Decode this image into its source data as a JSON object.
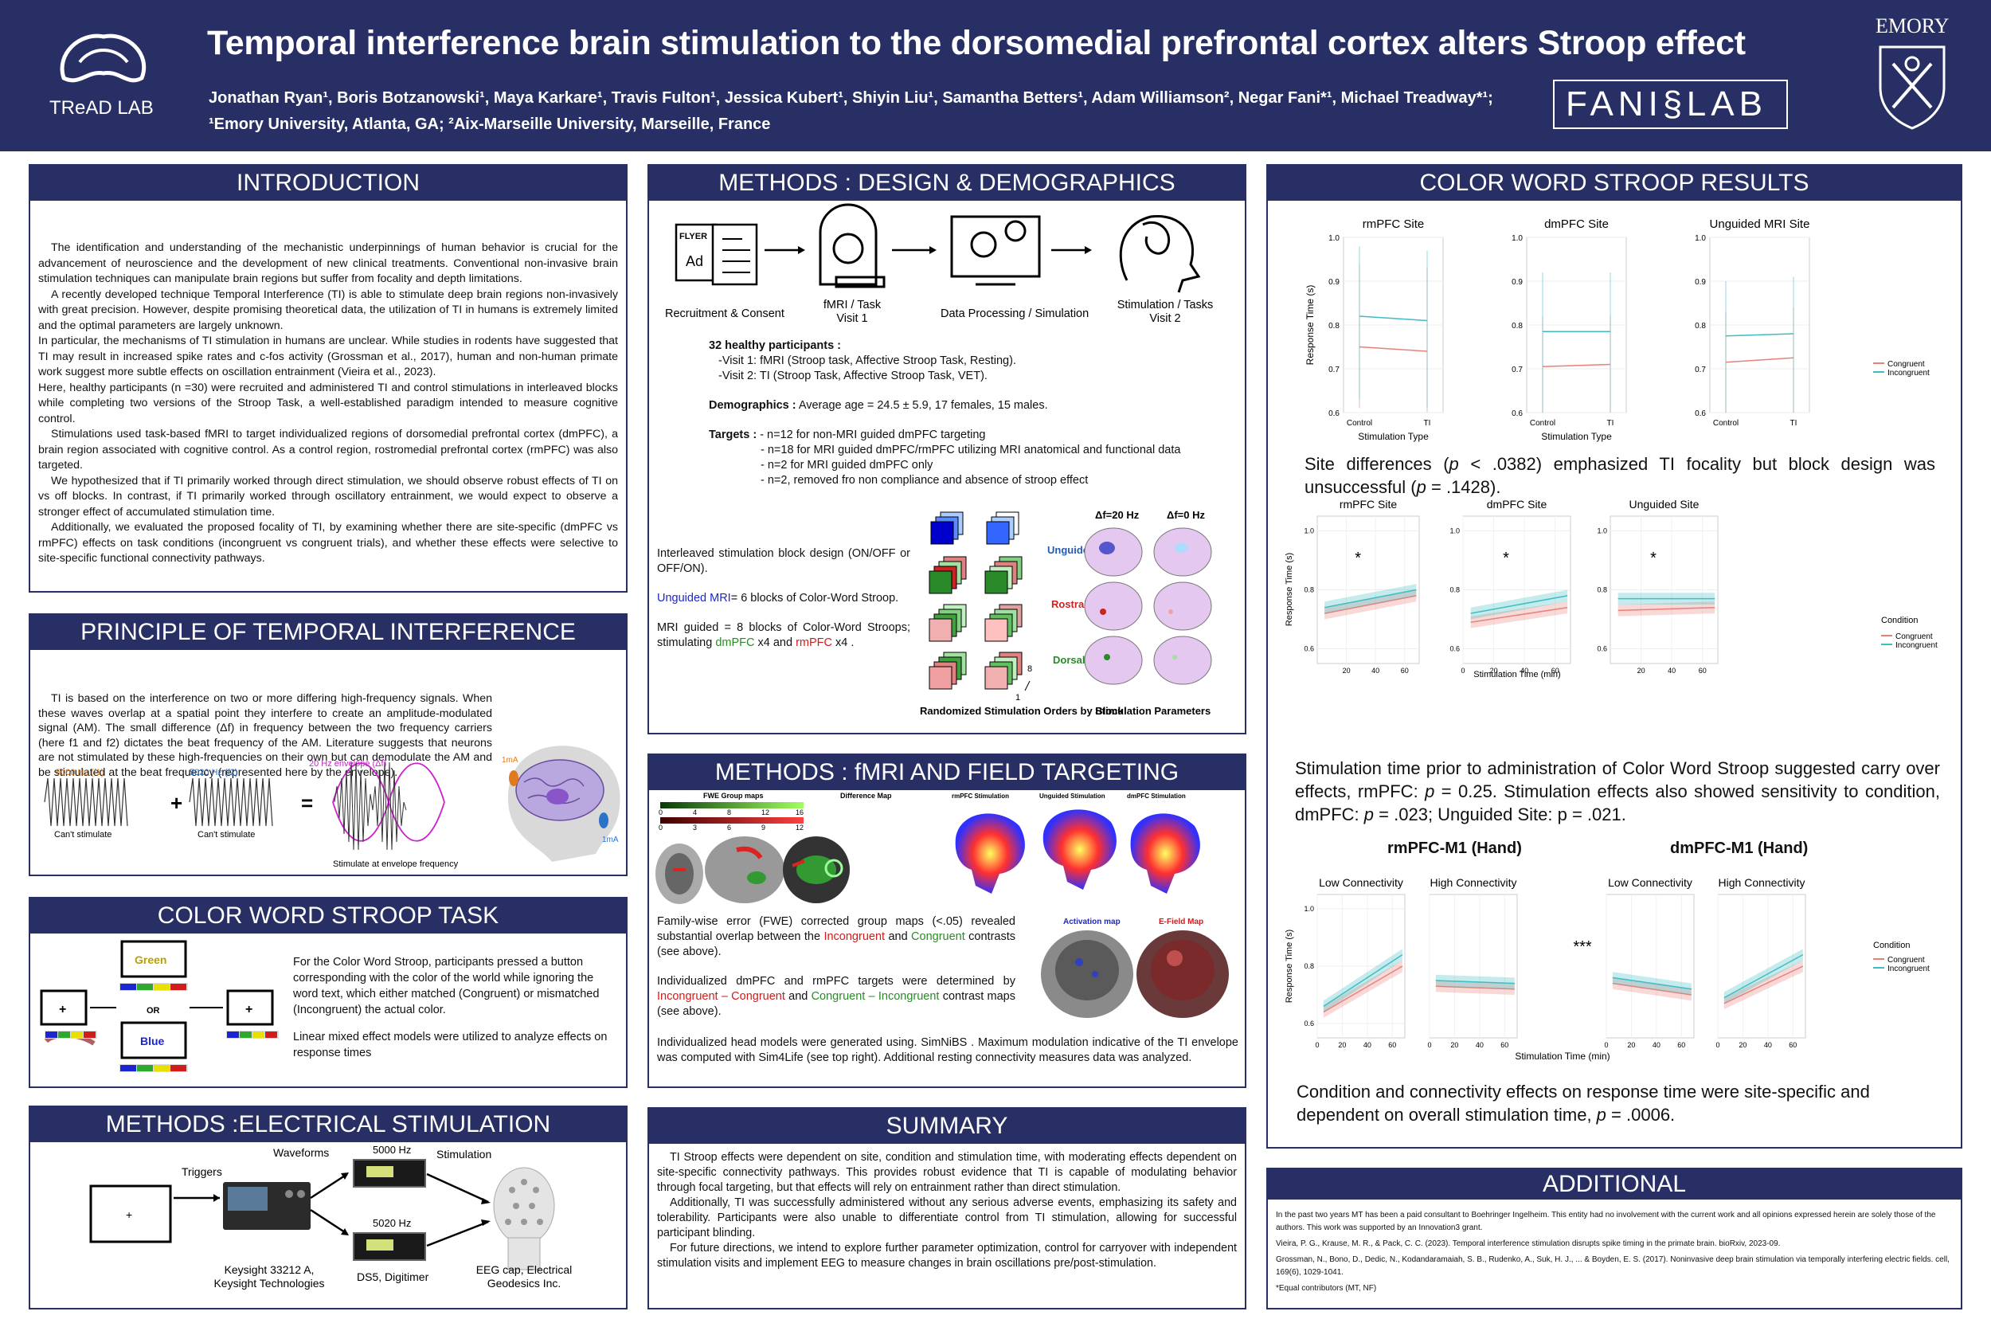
{
  "header": {
    "title": "Temporal interference brain stimulation to the dorsomedial prefrontal cortex alters Stroop effect",
    "authors": "Jonathan Ryan¹, Boris Botzanowski¹, Maya Karkare¹, Travis Fulton¹, Jessica Kubert¹, Shiyin Liu¹, Samantha Betters¹, Adam Williamson², Negar Fani*¹, Michael Treadway*¹;",
    "affiliations": "¹Emory University, Atlanta, GA; ²Aix-Marseille University, Marseille, France",
    "lab_name": "TReAD LAB",
    "fani_lab": "FANI",
    "fani_lab_2": "LAB",
    "university": "EMORY",
    "brand_color": "#272f64"
  },
  "intro": {
    "title": "INTRODUCTION",
    "p1": "The identification and understanding of the mechanistic underpinnings of human behavior is crucial for the advancement of neuroscience and the development of new clinical treatments. Conventional non-invasive brain stimulation techniques can manipulate brain regions but suffer from focality and depth limitations.",
    "p2": "A recently developed technique Temporal Interference (TI) is able to stimulate deep brain regions non-invasively with great precision.  However, despite promising theoretical data, the utilization of TI in humans is extremely limited and the optimal parameters are largely unknown.",
    "p3": "In particular, the mechanisms of TI stimulation in humans are unclear. While studies in rodents have suggested that TI may result in increased spike rates and c-fos activity (Grossman et al., 2017), human and non-human primate work suggest more subtle effects on oscillation entrainment (Vieira et al., 2023).",
    "p4": "Here, healthy participants (n =30) were recruited and administered TI and control stimulations in interleaved blocks while completing two versions of the Stroop Task, a well-established paradigm intended to measure cognitive control.",
    "p5": "Stimulations used task-based fMRI to target individualized regions of dorsomedial prefrontal cortex (dmPFC), a brain region associated with cognitive control. As a control region, rostromedial prefrontal cortex (rmPFC) was also targeted.",
    "p6": "We hypothesized that if TI primarily worked through direct stimulation, we should observe robust effects of TI on vs off blocks. In contrast, if TI primarily worked through oscillatory entrainment, we would expect to observe a stronger effect of accumulated stimulation time.",
    "p7": "Additionally, we evaluated the proposed focality of TI, by examining whether there are site-specific (dmPFC vs rmPFC) effects on task conditions (incongruent vs congruent trials), and whether these effects were selective to site-specific functional connectivity pathways."
  },
  "principle": {
    "title": "PRINCIPLE OF TEMPORAL INTERFERENCE",
    "text": "TI is based on the interference on two or more differing high-frequency signals. When these waves overlap at a spatial point they interfere to create an amplitude-modulated signal (AM). The small difference (Δf) in frequency between the two frequency carriers (here f1 and f2) dictates the beat frequency of the AM. Literature suggests that neurons are not stimulated by these high-frequencies on their own but can demodulate the AM and be stimulated at the beat frequency (represented here by the envelope).",
    "f1": "5000 Hz (f1)",
    "f2": "5020 Hz (f2)",
    "env": "20 Hz envelope (Δf)",
    "cant1": "Can't stimulate",
    "cant2": "Can't stimulate",
    "stim": "Stimulate at envelope frequency",
    "ma1": "1mA",
    "ma2": "1mA",
    "plus": "+",
    "eq": "="
  },
  "stroop": {
    "title": "COLOR WORD STROOP TASK",
    "text1": "For the Color Word Stroop, participants pressed a button corresponding with the color of the world while ignoring the word text, which either matched (Congruent) or mismatched (Incongruent) the actual color.",
    "text2": "Linear mixed effect models were utilized to analyze effects on response times",
    "w_green": "Green",
    "w_blue": "Blue",
    "or": "OR",
    "fix1": "+",
    "fix2": "+"
  },
  "elec": {
    "title": "METHODS :ELECTRICAL STIMULATION",
    "triggers": "Triggers",
    "waveforms": "Waveforms",
    "stimulation": "Stimulation",
    "hz1": "5000 Hz",
    "hz2": "5020 Hz",
    "keysight": "Keysight 33212 A,\nKeysight Technologies",
    "ds5": "DS5, Digitimer",
    "eeg": "EEG cap, Electrical\nGeodesics Inc.",
    "plus": "+"
  },
  "design": {
    "title": "METHODS : DESIGN & DEMOGRAPHICS",
    "step1": "Recruitment & Consent",
    "step2": "fMRI / Task\nVisit 1",
    "step3": "Data Processing / Simulation",
    "step4": "Stimulation / Tasks\nVisit 2",
    "flyer": "FLYER",
    "ad": "Ad",
    "participants": "32 healthy participants :",
    "visit1": "-Visit 1: fMRI (Stroop task, Affective Stroop Task, Resting).",
    "visit2": "-Visit 2: TI (Stroop Task, Affective Stroop Task, VET).",
    "demo_label": "Demographics :",
    "demo": " Average age = 24.5 ± 5.9, 17 females, 15 males.",
    "targets_label": "Targets :",
    "t1": "- n=12 for non-MRI guided dmPFC targeting",
    "t2": "- n=18 for MRI guided dmPFC/rmPFC utilizing MRI anatomical and functional data",
    "t3": "- n=2 for MRI guided dmPFC only",
    "t4": "- n=2, removed fro non compliance and absence of stroop effect",
    "interleaved": "Interleaved stimulation block design (ON/OFF or OFF/ON).",
    "unguided_a": "Unguided ",
    "unguided_b": "MRI",
    "unguided_c": "= 6 blocks of Color-Word Stroop.",
    "mri_a": "MRI guided = 8 blocks of Color-Word Stroops; stimulating ",
    "mri_b": "dmPFC",
    "mri_c": " x4 and ",
    "mri_d": "rmPFC",
    "mri_e": " x4 .",
    "rand": "Randomized Stimulation Orders by Block",
    "params": "Stimulation Parameters",
    "df20": "Δf=20 Hz",
    "df0": "Δf=0 Hz",
    "lab_unguided": "Unguided",
    "lab_rostral": "Rostral",
    "lab_dorsal": "Dorsal",
    "n1": "1",
    "n8": "8"
  },
  "fmri": {
    "title": "METHODS : fMRI AND FIELD TARGETING",
    "fwe": "FWE Group maps",
    "diffmap": "Difference Map",
    "s1": "rmPFC Stimulation",
    "s2": "Unguided Stimulation",
    "s3": "dmPFC Stimulation",
    "sc_g": [
      "0",
      "4",
      "8",
      "12",
      "16"
    ],
    "sc_r": [
      "0",
      "3",
      "6",
      "9",
      "12"
    ],
    "act": "Activation map",
    "efield": "E-Field Map",
    "p1_a": "Family-wise error (FWE) corrected group maps (<.05) revealed substantial overlap between the ",
    "p1_b": "Incongruent",
    "p1_c": " and ",
    "p1_d": "Congruent",
    "p1_e": " contrasts (see above).",
    "p2_a": "Individualized dmPFC and rmPFC targets were determined by ",
    "p2_b": "Incongruent – Congruent",
    "p2_c": " and ",
    "p2_d": "Congruent – Incongruent",
    "p2_e": " contrast maps (see above).",
    "p3": "Individualized head models were generated using. SimNiBS . Maximum modulation indicative of the TI envelope was computed with Sim4Life (see top right). Additional resting connectivity measures data was analyzed."
  },
  "summary": {
    "title": "SUMMARY",
    "p1": "TI Stroop effects were dependent on site, condition and stimulation time, with moderating effects dependent on site-specific connectivity pathways. This provides robust evidence that TI is capable of modulating behavior through focal targeting, but that effects will rely on entrainment rather than direct stimulation.",
    "p2": "Additionally, TI was successfully administered without any serious adverse events, emphasizing its safety and tolerability. Participants were also unable to differentiate control from TI stimulation, allowing for successful participant blinding.",
    "p3": "For future directions, we intend to explore further parameter optimization, control for carryover with independent stimulation visits and implement EEG to measure changes in brain oscillations pre/post-stimulation."
  },
  "results": {
    "title": "COLOR WORD STROOP RESULTS",
    "text1_a": "Site differences (",
    "text1_p1": "p",
    "text1_b": " < .0382) emphasized TI focality but block design was unsuccessful (",
    "text1_p2": "p",
    "text1_c": " = .1428).",
    "text2_a": "Stimulation time prior to administration of Color Word Stroop suggested carry over effects, rmPFC: ",
    "text2_p1": "p",
    "text2_b": " = 0.25. Stimulation effects also showed sensitivity to condition, dmPFC: ",
    "text2_p2": "p",
    "text2_c": " = .023; Unguided Site: p = .021.",
    "text3_a": "Condition and connectivity effects on response time were site-specific and dependent on overall stimulation time, ",
    "text3_p": "p",
    "text3_b": " = .0006.",
    "hand_r": "rmPFC-M1 (Hand)",
    "hand_d": "dmPFC-M1 (Hand)",
    "star3": "***"
  },
  "additional": {
    "title": "ADDITIONAL",
    "disclosure": "In the past two years MT has been a paid consultant to Boehringer Ingelheim. This entity had no involvement with the current work and all opinions expressed herein are solely those of the authors. This work was supported by an Innovation3 grant.",
    "ref1": "Vieira, P. G., Krause, M. R., & Pack, C. C. (2023). Temporal interference stimulation disrupts spike timing in the primate brain. bioRxiv, 2023-09.",
    "ref2": "Grossman, N., Bono, D., Dedic, N., Kodandaramaiah, S. B., Rudenko, A., Suk, H. J., ... & Boyden, E. S. (2017). Noninvasive deep brain stimulation via temporally interfering electric fields. cell, 169(6), 1029-1041.",
    "equal": "*Equal contributors (MT, NF)"
  },
  "colors": {
    "congruent": "#e8817a",
    "incongruent": "#3fbcc4"
  },
  "chart_data": [
    {
      "type": "line",
      "title": "rmPFC Site",
      "categories": [
        "Control",
        "TI"
      ],
      "xlabel": "Stimulation Type",
      "ylabel": "Response Time (s)",
      "ylim": [
        0.6,
        1.0
      ],
      "series": [
        {
          "name": "Congruent",
          "values": [
            0.75,
            0.74
          ],
          "lower": [
            0.61,
            0.6
          ],
          "upper": [
            0.94,
            0.93
          ]
        },
        {
          "name": "Incongruent",
          "values": [
            0.82,
            0.81
          ],
          "lower": [
            0.63,
            0.61
          ],
          "upper": [
            0.98,
            0.97
          ]
        }
      ],
      "legend_title": "Condition",
      "legend": "right"
    },
    {
      "type": "line",
      "title": "dmPFC Site",
      "categories": [
        "Control",
        "TI"
      ],
      "xlabel": "Stimulation Type",
      "ylim": [
        0.6,
        1.0
      ],
      "series": [
        {
          "name": "Congruent",
          "values": [
            0.705,
            0.71
          ],
          "lower": [
            0.6,
            0.6
          ],
          "upper": [
            0.82,
            0.82
          ]
        },
        {
          "name": "Incongruent",
          "values": [
            0.785,
            0.785
          ],
          "lower": [
            0.6,
            0.6
          ],
          "upper": [
            0.92,
            0.92
          ]
        }
      ]
    },
    {
      "type": "line",
      "title": "Unguided MRI Site",
      "categories": [
        "Control",
        "TI"
      ],
      "ylim": [
        0.6,
        1.0
      ],
      "series": [
        {
          "name": "Congruent",
          "values": [
            0.715,
            0.725
          ],
          "lower": [
            0.6,
            0.6
          ],
          "upper": [
            0.83,
            0.84
          ]
        },
        {
          "name": "Incongruent",
          "values": [
            0.775,
            0.78
          ],
          "lower": [
            0.6,
            0.6
          ],
          "upper": [
            0.9,
            0.91
          ]
        }
      ]
    },
    {
      "type": "scatter",
      "title": "rmPFC Site",
      "xlabel": "Stimulation Time (min)",
      "ylabel": "Response Time (s)",
      "xlim": [
        0,
        70
      ],
      "ylim": [
        0.55,
        1.05
      ],
      "xticks": [
        20,
        40,
        60
      ],
      "yticks": [
        0.6,
        0.8,
        1.0
      ],
      "annotation": "*",
      "series": [
        {
          "name": "Congruent",
          "fit": [
            [
              5,
              0.72
            ],
            [
              68,
              0.78
            ]
          ]
        },
        {
          "name": "Incongruent",
          "fit": [
            [
              5,
              0.74
            ],
            [
              68,
              0.8
            ]
          ]
        }
      ],
      "legend_title": "Condition"
    },
    {
      "type": "scatter",
      "title": "dmPFC Site",
      "xlabel": "Stimulation Time (min)",
      "xlim": [
        0,
        70
      ],
      "ylim": [
        0.55,
        1.05
      ],
      "xticks": [
        0,
        20,
        40,
        60
      ],
      "yticks": [
        0.6,
        0.8,
        1.0
      ],
      "annotation": "*",
      "series": [
        {
          "name": "Congruent",
          "fit": [
            [
              5,
              0.69
            ],
            [
              68,
              0.74
            ]
          ]
        },
        {
          "name": "Incongruent",
          "fit": [
            [
              5,
              0.72
            ],
            [
              68,
              0.78
            ]
          ]
        }
      ]
    },
    {
      "type": "scatter",
      "title": "Unguided Site",
      "xlim": [
        0,
        70
      ],
      "ylim": [
        0.55,
        1.05
      ],
      "xticks": [
        20,
        40,
        60
      ],
      "yticks": [
        0.6,
        0.8,
        1.0
      ],
      "annotation": "*",
      "series": [
        {
          "name": "Congruent",
          "fit": [
            [
              5,
              0.73
            ],
            [
              68,
              0.74
            ]
          ]
        },
        {
          "name": "Incongruent",
          "fit": [
            [
              5,
              0.77
            ],
            [
              68,
              0.77
            ]
          ]
        }
      ]
    },
    {
      "type": "scatter",
      "title": "Low Connectivity",
      "group": "rmPFC-M1 (Hand)",
      "ylabel": "Response Time (s)",
      "xlim": [
        0,
        70
      ],
      "ylim": [
        0.55,
        1.05
      ],
      "xticks": [
        0,
        20,
        40,
        60
      ],
      "yticks": [
        0.6,
        0.8,
        1.0
      ],
      "series": [
        {
          "name": "Congruent",
          "fit": [
            [
              5,
              0.64
            ],
            [
              68,
              0.8
            ]
          ]
        },
        {
          "name": "Incongruent",
          "fit": [
            [
              5,
              0.66
            ],
            [
              68,
              0.84
            ]
          ]
        }
      ]
    },
    {
      "type": "scatter",
      "title": "High Connectivity",
      "group": "rmPFC-M1 (Hand)",
      "xlim": [
        0,
        70
      ],
      "ylim": [
        0.55,
        1.05
      ],
      "xticks": [
        0,
        20,
        40,
        60
      ],
      "series": [
        {
          "name": "Congruent",
          "fit": [
            [
              5,
              0.73
            ],
            [
              68,
              0.72
            ]
          ]
        },
        {
          "name": "Incongruent",
          "fit": [
            [
              5,
              0.75
            ],
            [
              68,
              0.74
            ]
          ]
        }
      ]
    },
    {
      "type": "scatter",
      "title": "Low Connectivity",
      "group": "dmPFC-M1 (Hand)",
      "xlim": [
        0,
        70
      ],
      "ylim": [
        0.55,
        1.05
      ],
      "xticks": [
        0,
        20,
        40,
        60
      ],
      "annotation": "***",
      "series": [
        {
          "name": "Congruent",
          "fit": [
            [
              5,
              0.74
            ],
            [
              68,
              0.7
            ]
          ]
        },
        {
          "name": "Incongruent",
          "fit": [
            [
              5,
              0.76
            ],
            [
              68,
              0.72
            ]
          ]
        }
      ]
    },
    {
      "type": "scatter",
      "title": "High Connectivity",
      "group": "dmPFC-M1 (Hand)",
      "xlabel": "Stimulation Time (min)",
      "xlim": [
        0,
        70
      ],
      "ylim": [
        0.55,
        1.05
      ],
      "xticks": [
        0,
        20,
        40,
        60
      ],
      "series": [
        {
          "name": "Congruent",
          "fit": [
            [
              5,
              0.67
            ],
            [
              68,
              0.8
            ]
          ]
        },
        {
          "name": "Incongruent",
          "fit": [
            [
              5,
              0.69
            ],
            [
              68,
              0.84
            ]
          ]
        }
      ],
      "legend_title": "Condition"
    }
  ]
}
